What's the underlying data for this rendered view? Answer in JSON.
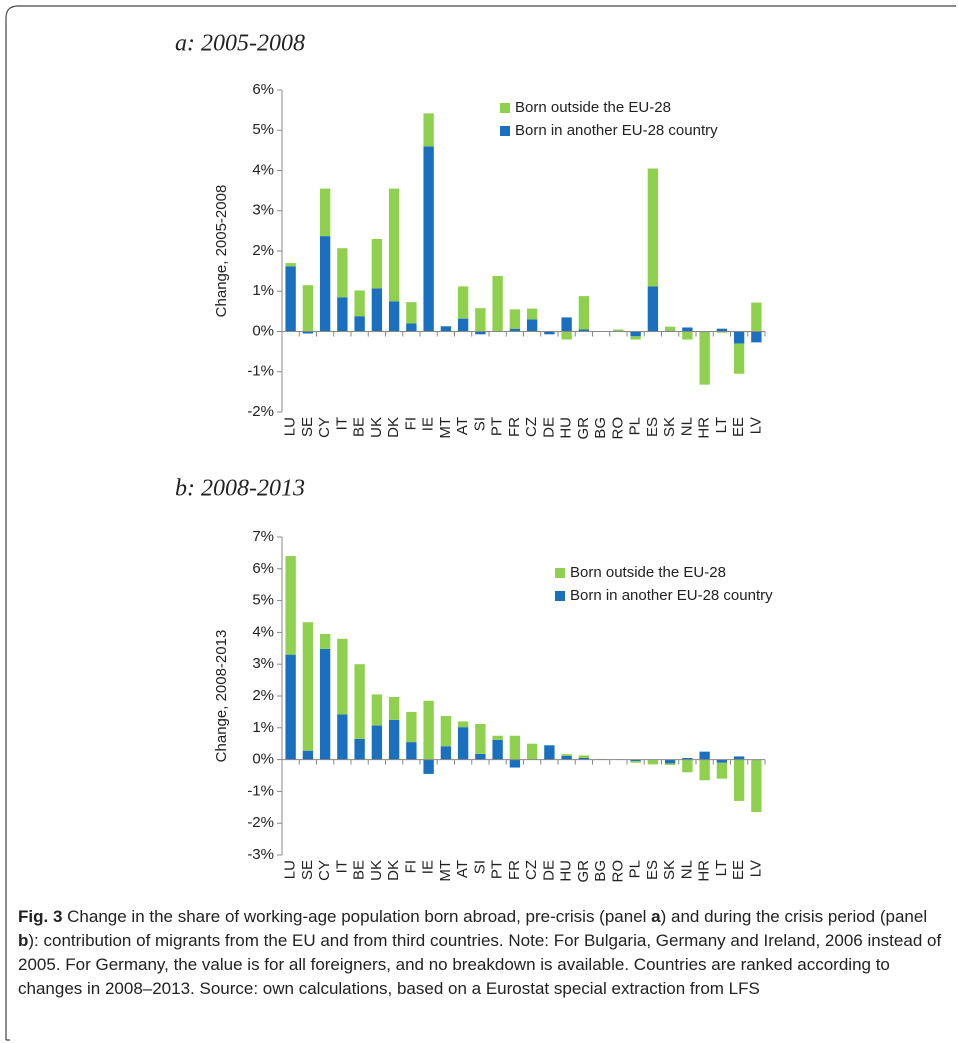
{
  "chart_data": [
    {
      "type": "bar",
      "stacked": true,
      "title": "a: 2005-2008",
      "y_label": "Change, 2005-2008",
      "categories": [
        "LU",
        "SE",
        "CY",
        "IT",
        "BE",
        "UK",
        "DK",
        "FI",
        "IE",
        "MT",
        "AT",
        "SI",
        "PT",
        "FR",
        "CZ",
        "DE",
        "HU",
        "GR",
        "BG",
        "RO",
        "PL",
        "ES",
        "SK",
        "NL",
        "HR",
        "LT",
        "EE",
        "LV"
      ],
      "series": [
        {
          "name": "Born in another EU-28 country",
          "color": "#1a6fbf",
          "values": [
            1.62,
            -0.05,
            2.37,
            0.85,
            0.38,
            1.07,
            0.75,
            0.2,
            4.6,
            0.13,
            0.32,
            -0.07,
            0,
            0.07,
            0.3,
            -0.07,
            0.35,
            0.05,
            0,
            0.02,
            -0.12,
            1.12,
            0.02,
            0.1,
            -0.02,
            0.07,
            -0.3,
            -0.27
          ]
        },
        {
          "name": "Born outside the EU-28",
          "color": "#8fd14f",
          "values": [
            0.08,
            1.15,
            1.18,
            1.22,
            0.64,
            1.23,
            2.8,
            0.53,
            0.82,
            0,
            0.8,
            0.58,
            1.38,
            0.48,
            0.27,
            0,
            -0.2,
            0.83,
            0,
            0.03,
            -0.08,
            2.93,
            0.1,
            -0.2,
            -1.3,
            -0.03,
            -0.75,
            0.72
          ]
        }
      ],
      "ylim": [
        -2,
        6
      ],
      "yticks": [
        {
          "value": -2,
          "label": "-2%"
        },
        {
          "value": -1,
          "label": "-1%"
        },
        {
          "value": 0,
          "label": "0%"
        },
        {
          "value": 1,
          "label": "1%"
        },
        {
          "value": 2,
          "label": "2%"
        },
        {
          "value": 3,
          "label": "3%"
        },
        {
          "value": 4,
          "label": "4%"
        },
        {
          "value": 5,
          "label": "5%"
        },
        {
          "value": 6,
          "label": "6%"
        }
      ]
    },
    {
      "type": "bar",
      "stacked": true,
      "title": "b: 2008-2013",
      "y_label": "Change, 2008-2013",
      "categories": [
        "LU",
        "SE",
        "CY",
        "IT",
        "BE",
        "UK",
        "DK",
        "FI",
        "IE",
        "MT",
        "AT",
        "SI",
        "PT",
        "FR",
        "CZ",
        "DE",
        "HU",
        "GR",
        "BG",
        "RO",
        "PL",
        "ES",
        "SK",
        "NL",
        "HR",
        "LT",
        "EE",
        "LV"
      ],
      "series": [
        {
          "name": "Born in another EU-28 country",
          "color": "#1a6fbf",
          "values": [
            3.3,
            0.28,
            3.48,
            1.42,
            0.65,
            1.07,
            1.25,
            0.55,
            -0.45,
            0.42,
            1.02,
            0.18,
            0.62,
            -0.25,
            0,
            0.45,
            0.12,
            0.05,
            0,
            0,
            -0.05,
            0,
            -0.12,
            0.05,
            0.25,
            -0.1,
            0.1,
            0
          ]
        },
        {
          "name": "Born outside the EU-28",
          "color": "#8fd14f",
          "values": [
            3.1,
            4.04,
            0.47,
            2.38,
            2.35,
            0.98,
            0.72,
            0.95,
            1.85,
            0.95,
            0.18,
            0.94,
            0.13,
            0.75,
            0.5,
            0,
            0.05,
            0.08,
            0.02,
            0.01,
            -0.05,
            -0.15,
            -0.05,
            -0.4,
            -0.65,
            -0.5,
            -1.3,
            -1.65
          ]
        }
      ],
      "ylim": [
        -3,
        7
      ],
      "yticks": [
        {
          "value": -3,
          "label": "-3%"
        },
        {
          "value": -2,
          "label": "-2%"
        },
        {
          "value": -1,
          "label": "-1%"
        },
        {
          "value": 0,
          "label": "0%"
        },
        {
          "value": 1,
          "label": "1%"
        },
        {
          "value": 2,
          "label": "2%"
        },
        {
          "value": 3,
          "label": "3%"
        },
        {
          "value": 4,
          "label": "4%"
        },
        {
          "value": 5,
          "label": "5%"
        },
        {
          "value": 6,
          "label": "6%"
        },
        {
          "value": 7,
          "label": "7%"
        }
      ]
    }
  ],
  "caption": {
    "label": "Fig. 3",
    "parts": [
      "Change in the share of working-age population born abroad, pre-crisis (panel ",
      "a",
      ") and during the crisis period (panel ",
      "b",
      "): contribution of migrants from the EU and from third countries. Note: For Bulgaria, Germany and Ireland, 2006 instead of 2005. For Germany, the value is for all foreigners, and no breakdown is available. Countries are ranked according to changes in 2008–2013. Source: own calculations, based on a Eurostat special extraction from LFS"
    ]
  }
}
